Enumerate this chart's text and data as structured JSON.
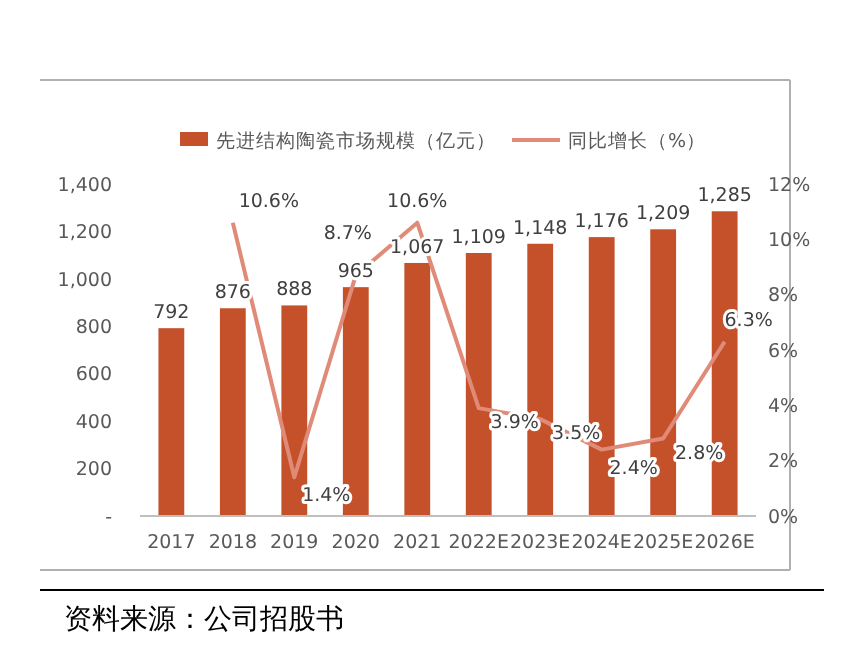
{
  "chart_data": {
    "type": "bar",
    "categories": [
      "2017",
      "2018",
      "2019",
      "2020",
      "2021",
      "2022E",
      "2023E",
      "2024E",
      "2025E",
      "2026E"
    ],
    "series": [
      {
        "name": "先进结构陶瓷市场规模（亿元）",
        "color": "#c5512b",
        "values": [
          792,
          876,
          888,
          965,
          1067,
          1109,
          1148,
          1176,
          1209,
          1285
        ],
        "value_labels": [
          "792",
          "876",
          "888",
          "965",
          "1,067",
          "1,109",
          "1,148",
          "1,176",
          "1,209",
          "1,285"
        ]
      },
      {
        "name": "同比增长（%）",
        "type": "line",
        "axis": "y2",
        "color": "#e08a78",
        "values": [
          null,
          10.6,
          1.4,
          8.7,
          10.6,
          3.9,
          3.5,
          2.4,
          2.8,
          6.3
        ],
        "value_labels": [
          null,
          "10.6%",
          "1.4%",
          "8.7%",
          "10.6%",
          "3.9%",
          "3.5%",
          "2.4%",
          "2.8%",
          "6.3%"
        ]
      }
    ],
    "ylim": [
      0,
      1400
    ],
    "yticks": [
      {
        "value": 0,
        "label": "-"
      },
      {
        "value": 200,
        "label": "200"
      },
      {
        "value": 400,
        "label": "400"
      },
      {
        "value": 600,
        "label": "600"
      },
      {
        "value": 800,
        "label": "800"
      },
      {
        "value": 1000,
        "label": "1,000"
      },
      {
        "value": 1200,
        "label": "1,200"
      },
      {
        "value": 1400,
        "label": "1,400"
      }
    ],
    "y2lim": [
      0,
      12
    ],
    "y2ticks": [
      {
        "value": 0,
        "label": "0%"
      },
      {
        "value": 2,
        "label": "2%"
      },
      {
        "value": 4,
        "label": "4%"
      },
      {
        "value": 6,
        "label": "6%"
      },
      {
        "value": 8,
        "label": "8%"
      },
      {
        "value": 10,
        "label": "10%"
      },
      {
        "value": 12,
        "label": "12%"
      }
    ],
    "legend": "top",
    "marker": "none",
    "grid": false,
    "annotations": [
      "资料来源：公司招股书"
    ]
  }
}
